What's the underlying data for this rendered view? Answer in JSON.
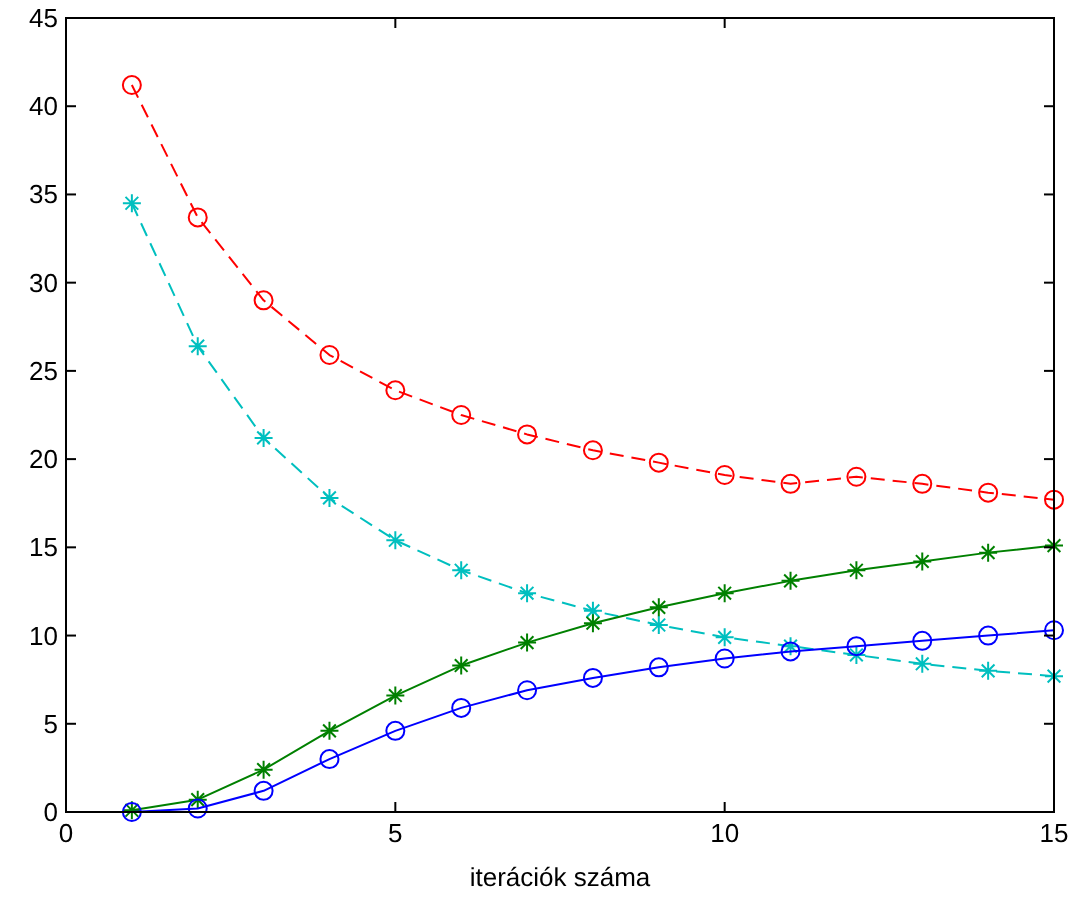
{
  "chart_data": {
    "type": "line",
    "xlabel": "iterációk száma",
    "x": [
      1,
      2,
      3,
      4,
      5,
      6,
      7,
      8,
      9,
      10,
      11,
      12,
      13,
      14,
      15
    ],
    "xlim": [
      0,
      15
    ],
    "xticks": [
      0,
      5,
      10,
      15
    ],
    "ylim": [
      0,
      45
    ],
    "yticks": [
      0,
      5,
      10,
      15,
      20,
      25,
      30,
      35,
      40,
      45
    ],
    "grid": false,
    "series": [
      {
        "color": "#ff0000",
        "marker": "circle",
        "line_style": "dashed",
        "values": [
          41.2,
          33.7,
          29,
          25.9,
          23.9,
          22.5,
          21.4,
          20.5,
          19.8,
          19.1,
          18.6,
          19.0,
          18.6,
          18.1,
          17.7
        ]
      },
      {
        "color": "#00bfbf",
        "marker": "cross",
        "line_style": "dashed",
        "values": [
          34.5,
          26.4,
          21.2,
          17.8,
          15.4,
          13.7,
          12.4,
          11.4,
          10.6,
          9.9,
          9.4,
          8.9,
          8.4,
          8.0,
          7.7
        ]
      },
      {
        "color": "#008000",
        "marker": "cross",
        "line_style": "solid",
        "values": [
          0.1,
          0.7,
          2.4,
          4.6,
          6.6,
          8.3,
          9.6,
          10.7,
          11.6,
          12.4,
          13.1,
          13.7,
          14.2,
          14.7,
          15.1
        ]
      },
      {
        "color": "#0000ff",
        "marker": "circle",
        "line_style": "solid",
        "values": [
          0,
          0.2,
          1.2,
          3.0,
          4.6,
          5.9,
          6.9,
          7.6,
          8.2,
          8.7,
          9.1,
          9.4,
          9.7,
          10.0,
          10.3
        ]
      }
    ]
  }
}
